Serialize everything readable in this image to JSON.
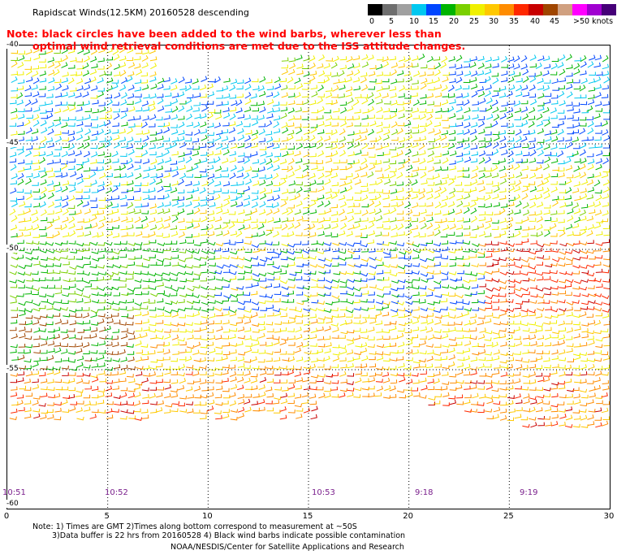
{
  "title": "Rapidscat Winds(12.5KM) 20160528 descending",
  "note_line1": "Note: black circles have been added to the wind barbs, wherever less than",
  "note_line2": "optimal wind retrieval conditions are met due to the ISS attitude changes.",
  "legend": {
    "labels": [
      "0",
      "5",
      "10",
      "15",
      "20",
      "25",
      "30",
      "35",
      "40",
      "45",
      ">50 knots"
    ],
    "colors": [
      "#000000",
      "#6e6e6e",
      "#a0a0a0",
      "#00c8f0",
      "#0046ff",
      "#00b400",
      "#7ad000",
      "#f0f000",
      "#ffc800",
      "#ff8c00",
      "#ff2800",
      "#c80000",
      "#a04600",
      "#d0a080",
      "#ff00ff",
      "#a000d0",
      "#460078"
    ]
  },
  "map": {
    "lon_range": [
      0,
      30
    ],
    "lat_range": [
      -40,
      -60
    ],
    "lon_ticks": [
      "0",
      "5",
      "10",
      "15",
      "20",
      "25",
      "30"
    ],
    "lat_ticks": [
      "-40",
      "-45",
      "-50",
      "-55",
      "-60"
    ],
    "colors": {
      "grid": "#000000",
      "time_label": "#7a1f8c"
    }
  },
  "time_labels": [
    "10:51",
    "10:52",
    "10:53",
    "9:18",
    "9:19"
  ],
  "footer": {
    "line1": "Note: 1) Times are GMT 2)Times along bottom correspond to measurement at ~50S",
    "line2": "3)Data buffer is 22 hrs from 20160528 4) Black wind barbs indicate possible contamination",
    "line3": "NOAA/NESDIS/Center for Satellite Applications and Research"
  }
}
